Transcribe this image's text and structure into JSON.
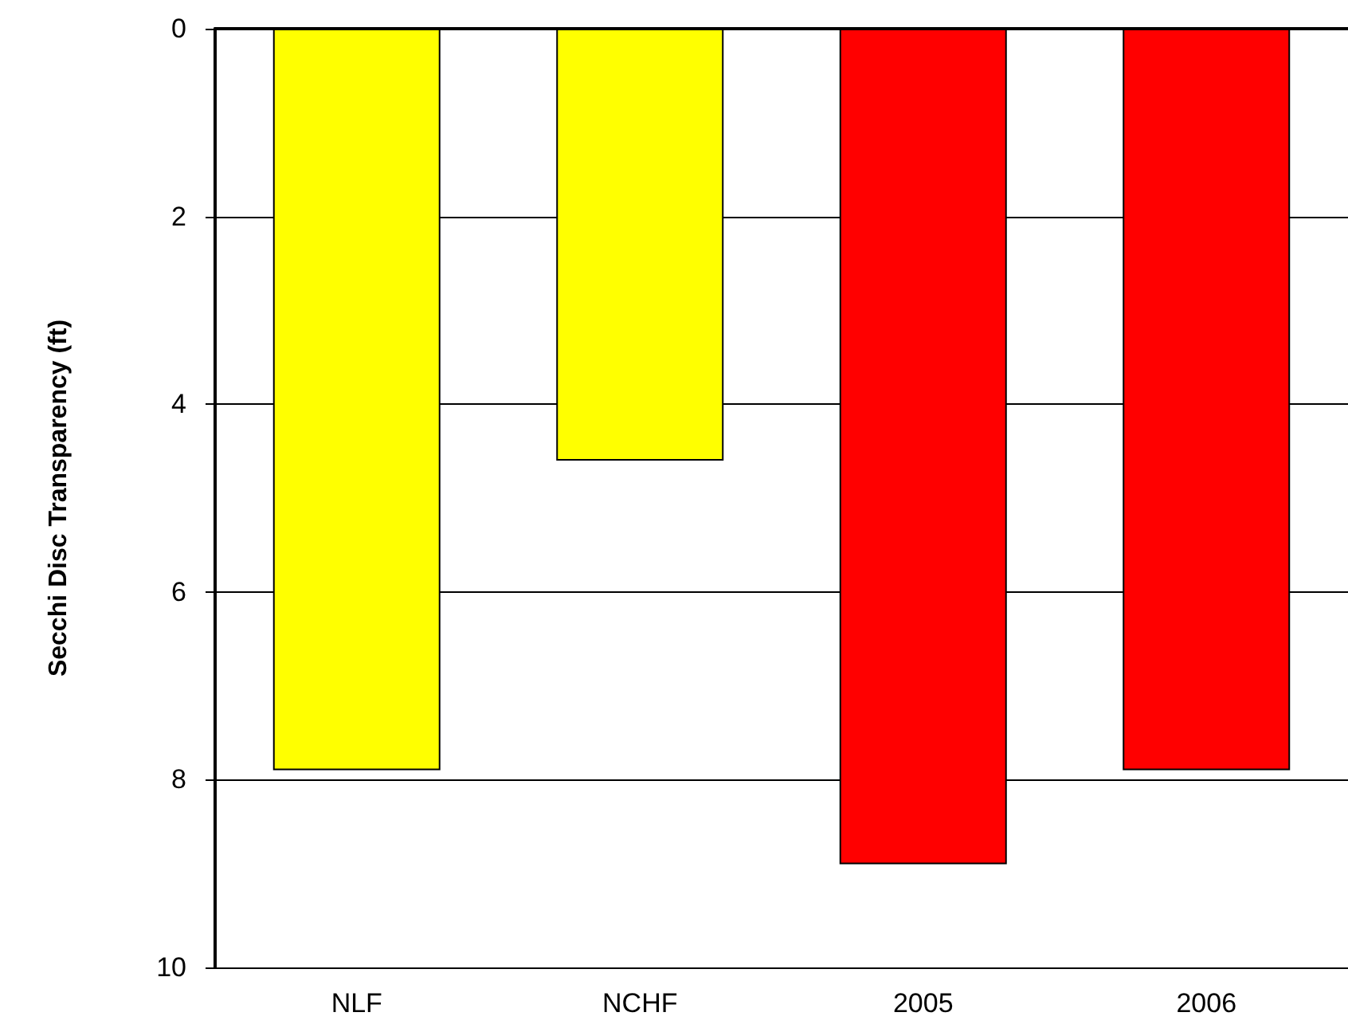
{
  "chart_data": {
    "type": "bar",
    "ylabel": "Secchi Disc Transparency (ft)",
    "categories": [
      "NLF",
      "NCHF",
      "2005",
      "2006"
    ],
    "values": [
      7.9,
      4.6,
      8.9,
      7.9
    ],
    "colors": [
      "#ffff00",
      "#ffff00",
      "#ff0000",
      "#ff0000"
    ],
    "ylim": [
      10,
      0
    ],
    "yticks": [
      0,
      2,
      4,
      6,
      8,
      10
    ],
    "grid": "y"
  }
}
